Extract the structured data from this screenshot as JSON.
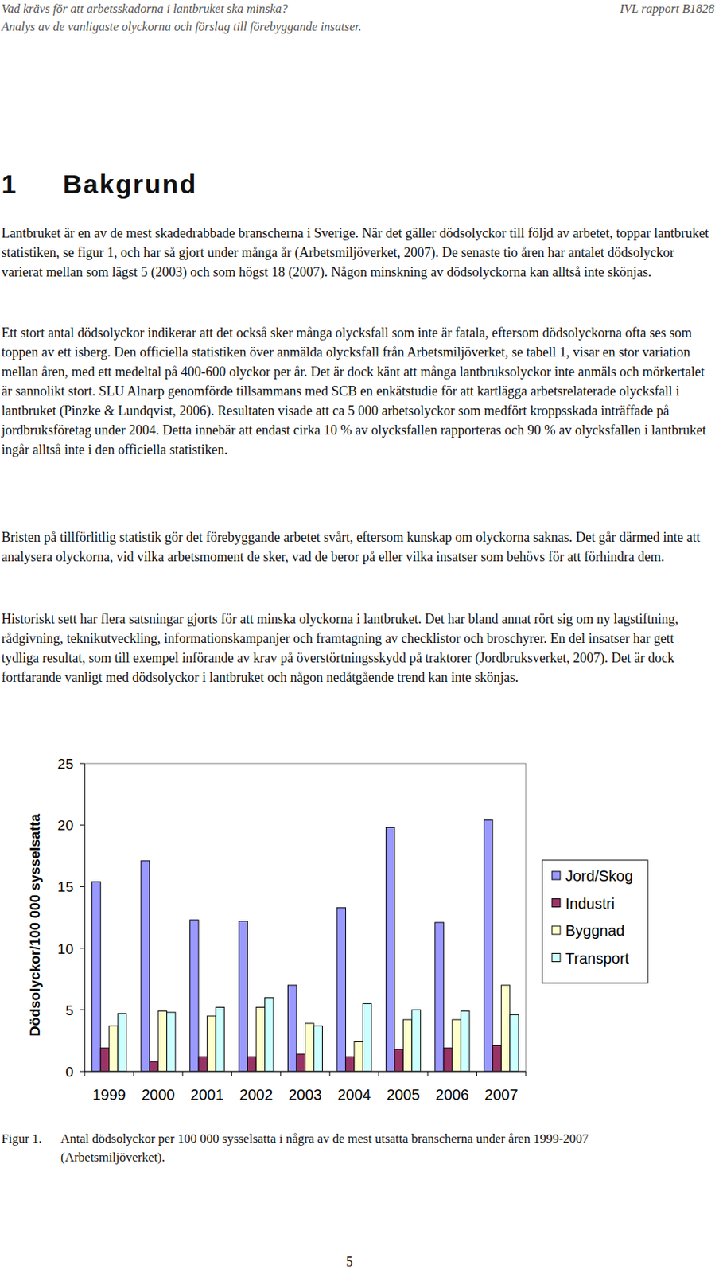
{
  "header": {
    "title": "Vad krävs för att arbetsskadorna i lantbruket ska minska?",
    "subtitle": "Analys av de vanligaste olyckorna och förslag till förebyggande insatser.",
    "report": "IVL rapport B1828"
  },
  "heading": {
    "number": "1",
    "title": "Bakgrund"
  },
  "paragraphs": [
    "Lantbruket är en av de mest skadedrabbade branscherna i Sverige. När det gäller dödsolyckor till följd av arbetet, toppar lantbruket statistiken, se figur 1, och har så gjort under många år (Arbetsmiljöverket, 2007). De senaste tio åren har antalet dödsolyckor varierat mellan som lägst 5 (2003) och som högst 18 (2007). Någon minskning av dödsolyckorna kan alltså inte skönjas.",
    "Ett stort antal dödsolyckor indikerar att det också sker många olycksfall som inte är fatala, eftersom dödsolyckorna ofta ses som toppen av ett isberg. Den officiella statistiken över anmälda olycksfall från Arbetsmiljöverket, se tabell 1, visar en stor variation mellan åren, med ett medeltal på 400-600 olyckor per år. Det är dock känt att många lantbruksolyckor inte anmäls och mörkertalet är sannolikt stort. SLU Alnarp genomförde tillsammans med SCB en enkätstudie för att kartlägga arbetsrelaterade olycksfall i lantbruket (Pinzke & Lundqvist, 2006). Resultaten visade att ca 5 000 arbetsolyckor som medfört kroppsskada inträffade på jordbruksföretag under 2004. Detta innebär att endast cirka 10 % av olycksfallen rapporteras och 90 % av olycksfallen i lantbruket ingår alltså inte i den officiella statistiken.",
    "Bristen på tillförlitlig statistik gör det förebyggande arbetet svårt, eftersom kunskap om olyckorna saknas. Det går därmed inte att analysera olyckorna, vid vilka arbetsmoment de sker, vad de beror på eller vilka insatser som behövs för att förhindra dem.",
    "Historiskt sett har flera satsningar gjorts för att minska olyckorna i lantbruket. Det har bland annat rört sig om ny lagstiftning, rådgivning, teknikutveckling, informationskampanjer och framtagning av checklistor och broschyrer. En del insatser har gett tydliga resultat, som till exempel införande av krav på överstörtningsskydd på traktorer (Jordbruksverket, 2007). Det är dock fortfarande vanligt med dödsolyckor i lantbruket och någon nedåtgående trend kan inte skönjas."
  ],
  "chart_data": {
    "type": "bar",
    "y_label": "Dödsolyckor/100 000 sysselsatta",
    "categories": [
      "1999",
      "2000",
      "2001",
      "2002",
      "2003",
      "2004",
      "2005",
      "2006",
      "2007"
    ],
    "series": [
      {
        "name": "Jord/Skog",
        "color": "#9999ff",
        "values": [
          15.4,
          17.1,
          12.3,
          12.2,
          7.0,
          13.3,
          19.8,
          12.1,
          20.4
        ]
      },
      {
        "name": "Industri",
        "color": "#993366",
        "values": [
          1.9,
          0.8,
          1.2,
          1.2,
          1.4,
          1.2,
          1.8,
          1.9,
          2.1
        ]
      },
      {
        "name": "Byggnad",
        "color": "#ffffcc",
        "values": [
          3.7,
          4.9,
          4.5,
          5.2,
          3.9,
          2.4,
          4.2,
          4.2,
          7.0
        ]
      },
      {
        "name": "Transport",
        "color": "#ccffff",
        "values": [
          4.7,
          4.8,
          5.2,
          6.0,
          3.7,
          5.5,
          5.0,
          4.9,
          4.6
        ]
      }
    ],
    "ylim": [
      0,
      25
    ],
    "yticks": [
      0,
      5,
      10,
      15,
      20,
      25
    ],
    "grid": false,
    "legend": "right"
  },
  "caption": {
    "label": "Figur 1.",
    "text": "Antal dödsolyckor per 100 000 sysselsatta i några av de mest utsatta branscherna under åren 1999-2007 (Arbetsmiljöverket)."
  },
  "page_number": "5"
}
